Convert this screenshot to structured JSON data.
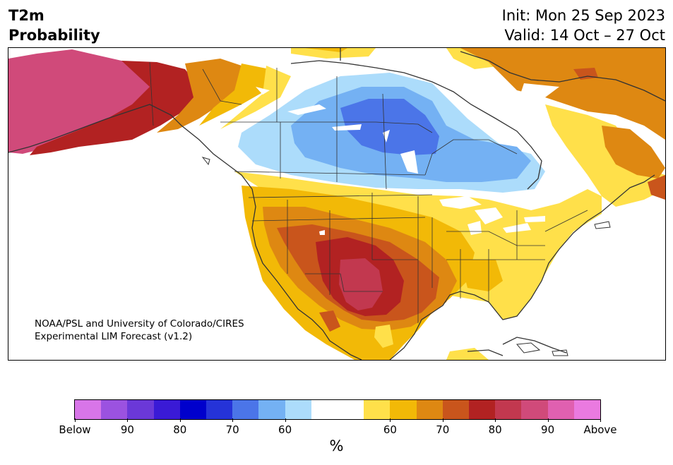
{
  "header": {
    "title_line1": "T2m",
    "title_line2": "Probability",
    "init": "Init: Mon 25 Sep 2023",
    "valid": "Valid: 14 Oct – 27 Oct"
  },
  "credit": {
    "line1": "NOAA/PSL and University of Colorado/CIRES",
    "line2": "Experimental LIM Forecast (v1.2)"
  },
  "colorbar": {
    "colors": [
      "#d875e8",
      "#9b52e0",
      "#6b38d8",
      "#3a1ad6",
      "#0000cc",
      "#2533d8",
      "#4b75e8",
      "#74b1f3",
      "#acdcfb",
      "#ffffff",
      "#ffffff",
      "#ffe04a",
      "#f2b907",
      "#de8812",
      "#c9551c",
      "#b22222",
      "#c2384f",
      "#d04a7a",
      "#e060b0",
      "#ea7ae0"
    ],
    "ticks": [
      "Below",
      "90",
      "80",
      "70",
      "60",
      "60",
      "70",
      "80",
      "90",
      "Above"
    ],
    "unit": "%"
  },
  "map_palette": {
    "light_blue": "#acdcfb",
    "mid_blue": "#74b1f3",
    "blue": "#4b75e8",
    "yellow": "#ffe04a",
    "gold": "#f2b907",
    "orange": "#de8812",
    "dark_orange": "#c9551c",
    "red": "#b22222",
    "crimson": "#c2384f",
    "magenta": "#d04a7a"
  }
}
